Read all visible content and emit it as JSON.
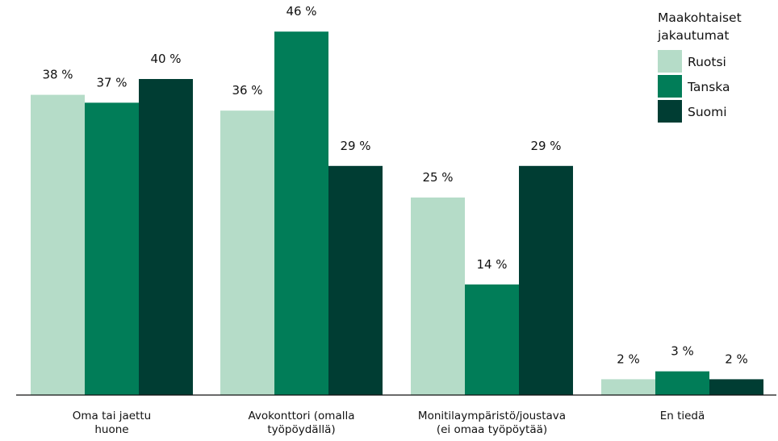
{
  "chart_data": {
    "type": "bar",
    "categories": [
      [
        "Oma tai jaettu",
        "huone"
      ],
      [
        "Avokonttori (omalla",
        "työpöydällä)"
      ],
      [
        "Monitilaympäristö/joustava",
        "(ei omaa työpöytää)"
      ],
      [
        "En tiedä"
      ]
    ],
    "series": [
      {
        "name": "Ruotsi",
        "color": "#b5dcc8",
        "values": [
          38,
          36,
          25,
          2
        ],
        "labels": [
          "38 %",
          "36 %",
          "25 %",
          "2 %"
        ]
      },
      {
        "name": "Tanska",
        "color": "#017d58",
        "values": [
          37,
          46,
          14,
          3
        ],
        "labels": [
          "37 %",
          "46 %",
          "14 %",
          "3 %"
        ]
      },
      {
        "name": "Suomi",
        "color": "#003d33",
        "values": [
          40,
          29,
          29,
          2
        ],
        "labels": [
          "40 %",
          "29 %",
          "29 %",
          "2 %"
        ]
      }
    ],
    "legend": {
      "title": [
        "Maakohtaiset",
        "jakautumat"
      ],
      "placement": "top-right"
    },
    "ylim": [
      0,
      50
    ],
    "grid": false
  }
}
